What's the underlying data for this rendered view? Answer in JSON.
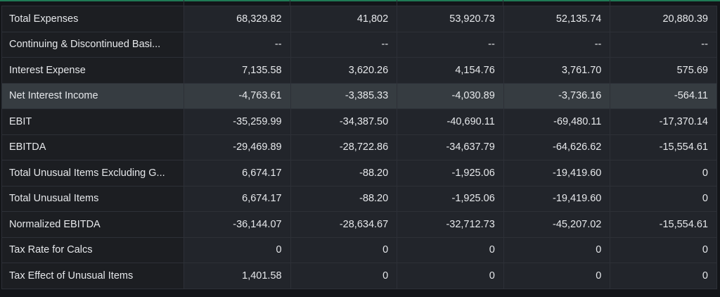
{
  "table": {
    "rows": [
      {
        "label": "Total Expenses",
        "values": [
          "68,329.82",
          "41,802",
          "53,920.73",
          "52,135.74",
          "20,880.39"
        ]
      },
      {
        "label": "Continuing & Discontinued Basi...",
        "values": [
          "--",
          "--",
          "--",
          "--",
          "--"
        ]
      },
      {
        "label": "Interest Expense",
        "values": [
          "7,135.58",
          "3,620.26",
          "4,154.76",
          "3,761.70",
          "575.69"
        ]
      },
      {
        "label": "Net Interest Income",
        "values": [
          "-4,763.61",
          "-3,385.33",
          "-4,030.89",
          "-3,736.16",
          "-564.11"
        ],
        "highlighted": true
      },
      {
        "label": "EBIT",
        "values": [
          "-35,259.99",
          "-34,387.50",
          "-40,690.11",
          "-69,480.11",
          "-17,370.14"
        ]
      },
      {
        "label": "EBITDA",
        "values": [
          "-29,469.89",
          "-28,722.86",
          "-34,637.79",
          "-64,626.62",
          "-15,554.61"
        ]
      },
      {
        "label": "Total Unusual Items Excluding G...",
        "values": [
          "6,674.17",
          "-88.20",
          "-1,925.06",
          "-19,419.60",
          "0"
        ]
      },
      {
        "label": "Total Unusual Items",
        "values": [
          "6,674.17",
          "-88.20",
          "-1,925.06",
          "-19,419.60",
          "0"
        ]
      },
      {
        "label": "Normalized EBITDA",
        "values": [
          "-36,144.07",
          "-28,634.67",
          "-32,712.73",
          "-45,207.02",
          "-15,554.61"
        ]
      },
      {
        "label": "Tax Rate for Calcs",
        "values": [
          "0",
          "0",
          "0",
          "0",
          "0"
        ]
      },
      {
        "label": "Tax Effect of Unusual Items",
        "values": [
          "1,401.58",
          "0",
          "0",
          "0",
          "0"
        ]
      }
    ]
  },
  "colors": {
    "background": "#131519",
    "label_cell": "#1c1e22",
    "value_cell": "#22252b",
    "highlight_row": "#363c41",
    "border": "#2d3037",
    "text": "#e6e8eb",
    "top_accent": "#1f7a55"
  }
}
